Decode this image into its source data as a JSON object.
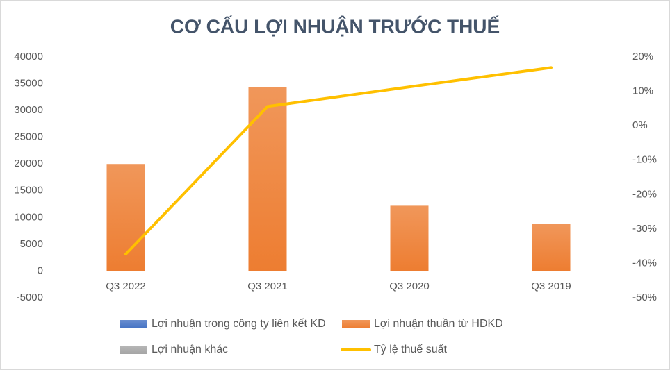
{
  "chart_data": {
    "type": "bar-line",
    "title": "CƠ CẤU LỢI NHUẬN TRƯỚC THUẾ",
    "categories": [
      "Q3 2022",
      "Q3 2021",
      "Q3 2020",
      "Q3 2019"
    ],
    "series": [
      {
        "name": "Lợi nhuận trong công ty liên kết KD",
        "type": "bar",
        "color": "#4472c4",
        "values": [
          0,
          0,
          0,
          0
        ]
      },
      {
        "name": "Lợi nhuận thuần từ HĐKD",
        "type": "bar",
        "color": "#ed7d31",
        "values": [
          20000,
          34300,
          12200,
          8800
        ]
      },
      {
        "name": "Lợi nhuận khác",
        "type": "bar",
        "color": "#a5a5a5",
        "values": [
          0,
          0,
          0,
          0
        ]
      },
      {
        "name": "Tỷ lệ thuế suất",
        "type": "line",
        "axis": "y2",
        "color": "#ffc000",
        "values": [
          -37.3,
          5.6,
          11.3,
          16.9
        ]
      }
    ],
    "ylim": [
      -5000,
      40000
    ],
    "yticks": [
      -5000,
      0,
      5000,
      10000,
      15000,
      20000,
      25000,
      30000,
      35000,
      40000
    ],
    "y2lim": [
      -50,
      20
    ],
    "y2ticks": [
      {
        "value": -50,
        "label": "-50%"
      },
      {
        "value": -40,
        "label": "-40%"
      },
      {
        "value": -30,
        "label": "-30%"
      },
      {
        "value": -20,
        "label": "-20%"
      },
      {
        "value": -10,
        "label": "-10%"
      },
      {
        "value": 0,
        "label": "0%"
      },
      {
        "value": 10,
        "label": "10%"
      },
      {
        "value": 20,
        "label": "20%"
      }
    ],
    "grid": false
  }
}
